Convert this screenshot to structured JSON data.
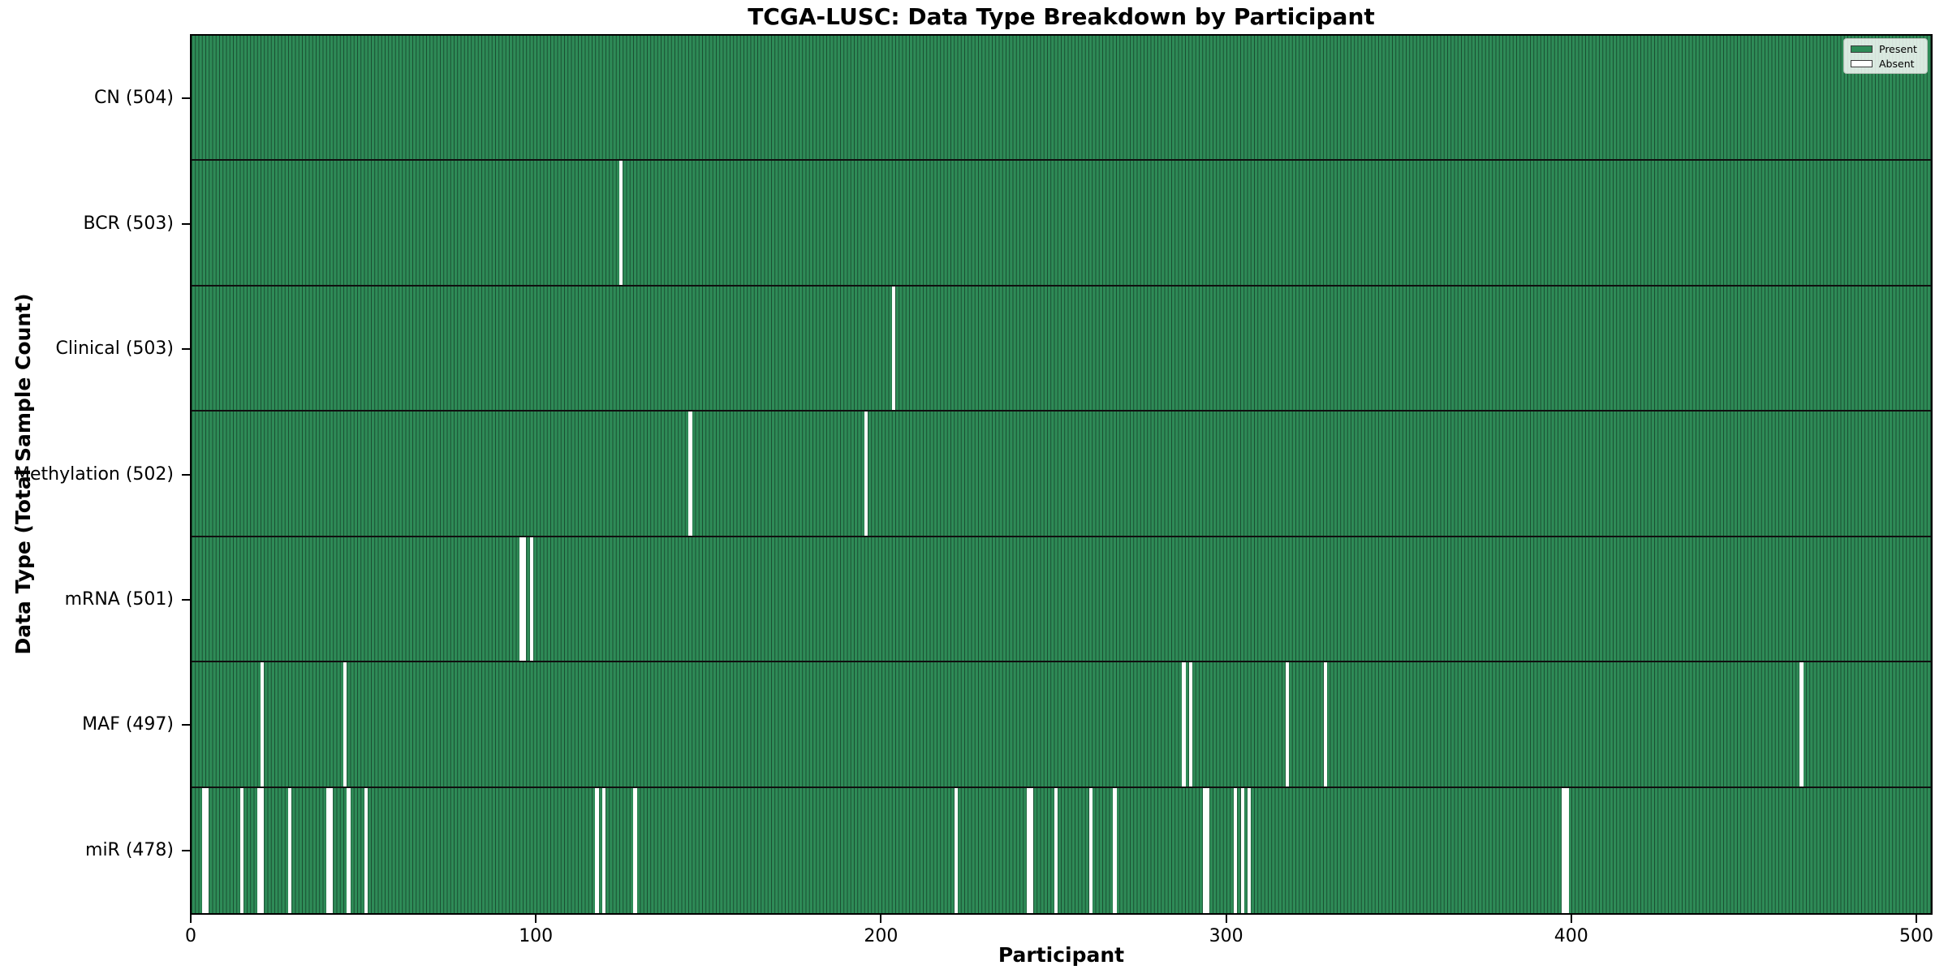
{
  "chart_data": {
    "type": "heatmap",
    "title": "TCGA-LUSC: Data Type Breakdown by Participant",
    "xlabel": "Participant",
    "ylabel": "Data Type (Total Sample Count)",
    "x_range": [
      0,
      504
    ],
    "x_ticks": [
      0,
      100,
      200,
      300,
      400,
      500
    ],
    "n_participants": 504,
    "legend_labels": [
      "Present",
      "Absent"
    ],
    "legend_position": "upper right",
    "grid": false,
    "colors": {
      "present": "#2e8b57",
      "absent": "#ffffff",
      "bar_edge": "rgba(0,0,0,0.45)",
      "row_separator": "#101010",
      "spine": "#000000"
    },
    "rows": [
      {
        "name": "CN",
        "label": "CN (504)",
        "present_count": 504,
        "absent_participants": []
      },
      {
        "name": "BCR",
        "label": "BCR (503)",
        "present_count": 503,
        "absent_participants": [
          124
        ]
      },
      {
        "name": "Clinical",
        "label": "Clinical (503)",
        "present_count": 503,
        "absent_participants": [
          203
        ]
      },
      {
        "name": "Methylation",
        "label": "Methylation (502)",
        "present_count": 502,
        "absent_participants": [
          144,
          195
        ]
      },
      {
        "name": "mRNA",
        "label": "mRNA (501)",
        "present_count": 501,
        "absent_participants": [
          95,
          96,
          98
        ]
      },
      {
        "name": "MAF",
        "label": "MAF (497)",
        "present_count": 497,
        "absent_participants": [
          20,
          44,
          287,
          289,
          317,
          328,
          466
        ]
      },
      {
        "name": "miR",
        "label": "miR (478)",
        "present_count": 478,
        "absent_participants": [
          3,
          4,
          14,
          19,
          20,
          28,
          39,
          40,
          45,
          50,
          117,
          119,
          128,
          221,
          242,
          243,
          250,
          260,
          267,
          293,
          294,
          302,
          304,
          306,
          397,
          398
        ]
      }
    ]
  }
}
